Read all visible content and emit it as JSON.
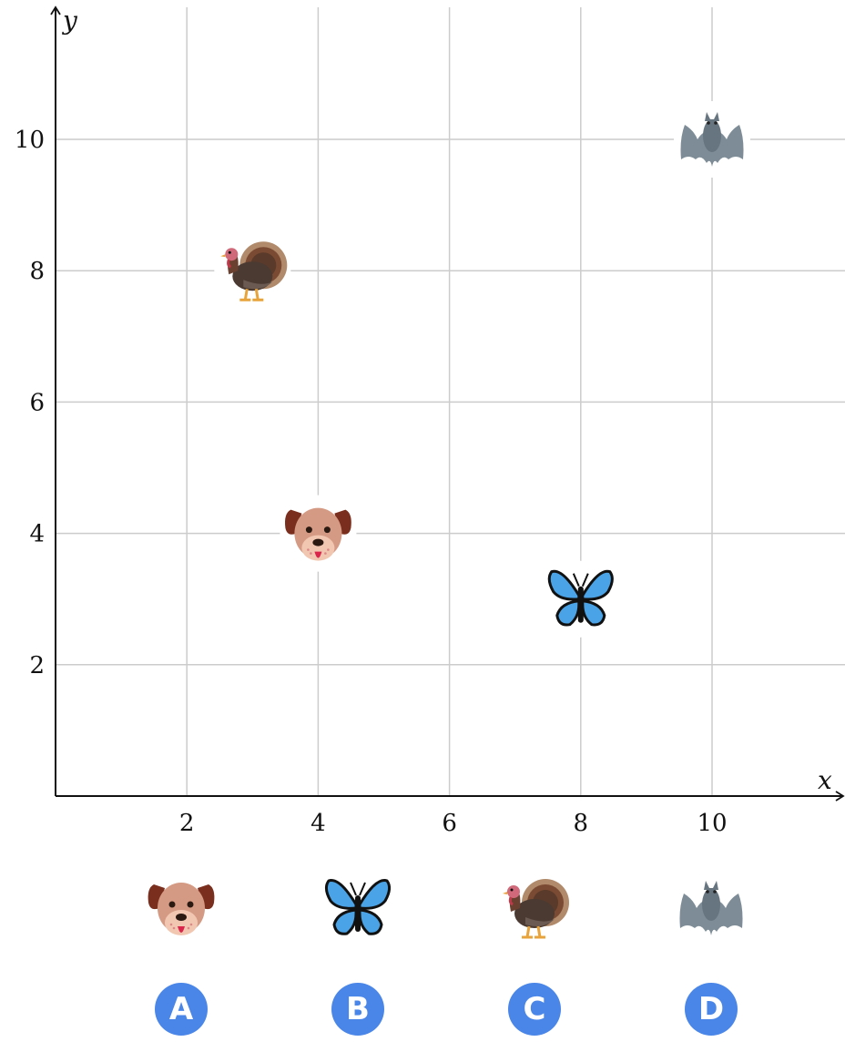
{
  "chart_data": {
    "type": "scatter",
    "xlabel": "x",
    "ylabel": "y",
    "xlim": [
      0,
      12
    ],
    "ylim": [
      0,
      12
    ],
    "xticks": [
      2,
      4,
      6,
      8,
      10
    ],
    "yticks": [
      2,
      4,
      6,
      8,
      10
    ],
    "grid": true,
    "points": [
      {
        "icon": "turkey-icon",
        "x": 3,
        "y": 8
      },
      {
        "icon": "dog-icon",
        "x": 4,
        "y": 4
      },
      {
        "icon": "butterfly-icon",
        "x": 8,
        "y": 3
      },
      {
        "icon": "bat-icon",
        "x": 10,
        "y": 10
      }
    ]
  },
  "choices": [
    {
      "letter": "A",
      "icon": "dog-icon"
    },
    {
      "letter": "B",
      "icon": "butterfly-icon"
    },
    {
      "letter": "C",
      "icon": "turkey-icon"
    },
    {
      "letter": "D",
      "icon": "bat-icon"
    }
  ],
  "colors": {
    "badge": "#4a86e8",
    "grid": "#cccccc",
    "axis": "#111111"
  }
}
